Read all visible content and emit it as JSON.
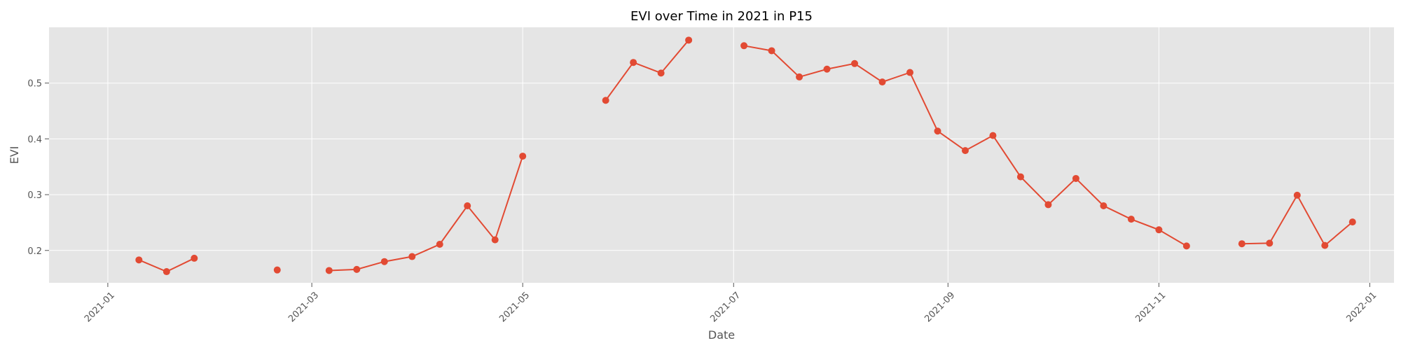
{
  "chart_data": {
    "type": "line",
    "title": "EVI over Time in 2021 in P15",
    "xlabel": "Date",
    "ylabel": "EVI",
    "grid": true,
    "legend": "none",
    "marker": "circle",
    "xlim": [
      "2020-12-15",
      "2022-01-08"
    ],
    "ylim": [
      0.142,
      0.6
    ],
    "x_ticks": [
      "2021-01",
      "2021-03",
      "2021-05",
      "2021-07",
      "2021-09",
      "2021-11",
      "2022-01"
    ],
    "y_ticks": [
      "0.2",
      "0.3",
      "0.4",
      "0.5"
    ],
    "colors": {
      "line": "#e24a33",
      "plot_bg": "#e5e5e5",
      "grid": "#ffffff",
      "tick": "#555555"
    },
    "segments": [
      {
        "x": [
          "2021-01-10",
          "2021-01-18",
          "2021-01-26"
        ],
        "y": [
          0.183,
          0.162,
          0.186
        ]
      },
      {
        "x": [
          "2021-02-19"
        ],
        "y": [
          0.165
        ]
      },
      {
        "x": [
          "2021-03-06",
          "2021-03-14",
          "2021-03-22",
          "2021-03-30",
          "2021-04-07",
          "2021-04-15",
          "2021-04-23",
          "2021-05-01"
        ],
        "y": [
          0.164,
          0.166,
          0.18,
          0.189,
          0.211,
          0.28,
          0.219,
          0.369
        ]
      },
      {
        "x": [
          "2021-05-25",
          "2021-06-02",
          "2021-06-10",
          "2021-06-18"
        ],
        "y": [
          0.469,
          0.537,
          0.518,
          0.577
        ]
      },
      {
        "x": [
          "2021-07-04",
          "2021-07-12",
          "2021-07-20",
          "2021-07-28",
          "2021-08-05",
          "2021-08-13",
          "2021-08-21",
          "2021-08-29",
          "2021-09-06",
          "2021-09-14",
          "2021-09-22",
          "2021-09-30",
          "2021-10-08",
          "2021-10-16",
          "2021-10-24",
          "2021-11-01",
          "2021-11-09"
        ],
        "y": [
          0.567,
          0.558,
          0.511,
          0.525,
          0.535,
          0.502,
          0.519,
          0.414,
          0.379,
          0.406,
          0.332,
          0.282,
          0.329,
          0.28,
          0.256,
          0.237,
          0.208
        ]
      },
      {
        "x": [
          "2021-11-25",
          "2021-12-03",
          "2021-12-11",
          "2021-12-19",
          "2021-12-27"
        ],
        "y": [
          0.212,
          0.213,
          0.299,
          0.209,
          0.251
        ]
      }
    ]
  }
}
